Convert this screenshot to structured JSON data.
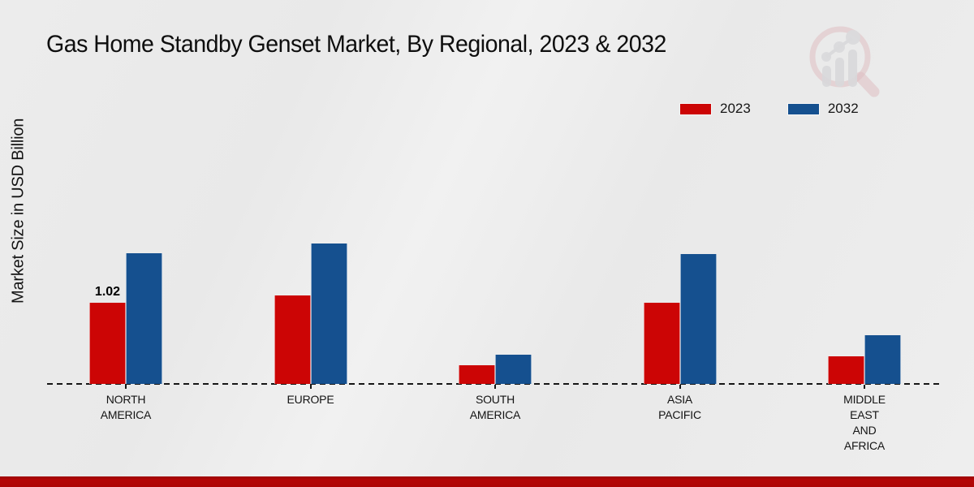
{
  "title": "Gas Home Standby Genset Market, By Regional, 2023 & 2032",
  "ylabel": "Market Size in USD Billion",
  "legend": [
    {
      "label": "2023",
      "color": "#cc0505"
    },
    {
      "label": "2032",
      "color": "#15508f"
    }
  ],
  "colors": {
    "bar_2023": "#cc0505",
    "bar_2032": "#15508f",
    "footer_accent": "#b00606",
    "background": "#ebebeb",
    "axis": "#161616"
  },
  "watermark_icon": "magnifier-bar-chart-logo",
  "chart_data": {
    "type": "bar",
    "title": "Gas Home Standby Genset Market, By Regional, 2023 & 2032",
    "xlabel": "",
    "ylabel": "Market Size in USD Billion",
    "categories": [
      "NORTH AMERICA",
      "EUROPE",
      "SOUTH AMERICA",
      "ASIA PACIFIC",
      "MIDDLE EAST AND AFRICA"
    ],
    "category_label_lines": [
      [
        "NORTH",
        "AMERICA"
      ],
      [
        "EUROPE"
      ],
      [
        "SOUTH",
        "AMERICA"
      ],
      [
        "ASIA",
        "PACIFIC"
      ],
      [
        "MIDDLE",
        "EAST",
        "AND",
        "AFRICA"
      ]
    ],
    "series": [
      {
        "name": "2023",
        "color": "#cc0505",
        "values": [
          1.02,
          1.11,
          0.23,
          1.02,
          0.35
        ]
      },
      {
        "name": "2032",
        "color": "#15508f",
        "values": [
          1.64,
          1.77,
          0.37,
          1.63,
          0.61
        ]
      }
    ],
    "annotations": [
      {
        "series": "2023",
        "category_index": 0,
        "text": "1.02"
      }
    ],
    "ylim": [
      0,
      2.2
    ],
    "grid": false,
    "y_axis_ticks_visible": false,
    "baseline_style": "dashed",
    "legend_position": "top-right"
  }
}
